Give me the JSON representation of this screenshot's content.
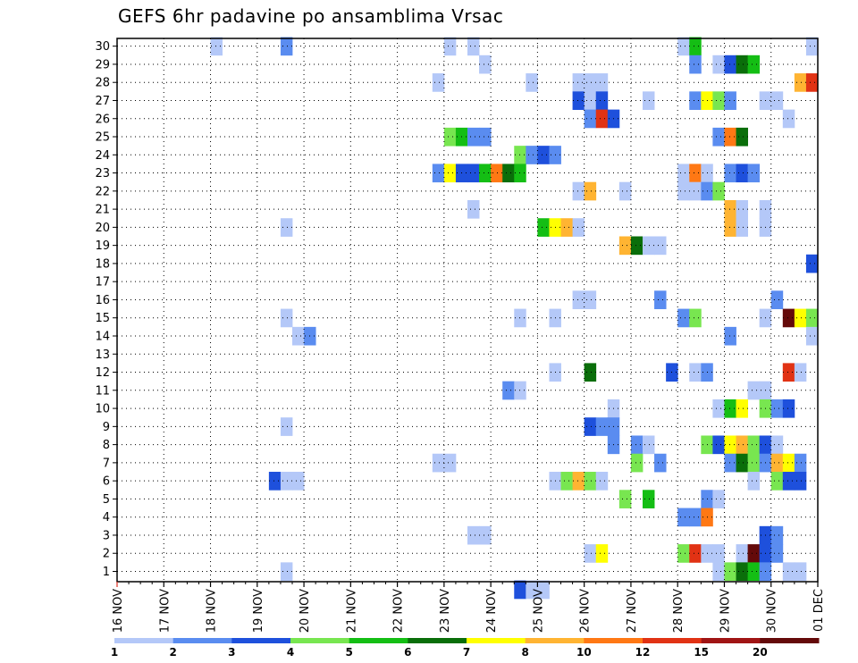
{
  "title": "GEFS 6hr padavine po ansamblima Vrsac",
  "chart_data": {
    "type": "heatmap",
    "title": "GEFS 6hr padavine po ansamblima Vrsac",
    "xlabel": "",
    "ylabel": "",
    "y_ticks": [
      "1",
      "2",
      "3",
      "4",
      "5",
      "6",
      "7",
      "8",
      "9",
      "10",
      "11",
      "12",
      "13",
      "14",
      "15",
      "16",
      "17",
      "18",
      "19",
      "20",
      "21",
      "22",
      "23",
      "24",
      "25",
      "26",
      "27",
      "28",
      "29",
      "30"
    ],
    "x_ticks": [
      "16 NOV",
      "17 NOV",
      "18 NOV",
      "19 NOV",
      "20 NOV",
      "21 NOV",
      "22 NOV",
      "23 NOV",
      "24 NOV",
      "25 NOV",
      "26 NOV",
      "27 NOV",
      "28 NOV",
      "29 NOV",
      "30 NOV",
      "01 DEC"
    ],
    "x_range": [
      "2023-11-16 00:00",
      "2023-12-01 00:00"
    ],
    "time_step_hours": 6,
    "grid": true,
    "legend": {
      "placement": "bottom",
      "labels": [
        "1",
        "2",
        "3",
        "4",
        "5",
        "6",
        "7",
        "8",
        "10",
        "12",
        "15",
        "20"
      ],
      "colors": [
        "#b4c8f8",
        "#5a8cf0",
        "#1e50dc",
        "#78e650",
        "#14be14",
        "#0a6e0a",
        "#ffff00",
        "#ffb432",
        "#ff7814",
        "#e13214",
        "#a01414",
        "#640a0a"
      ]
    },
    "level_colors": {
      "1": "#b4c8f8",
      "2": "#5a8cf0",
      "3": "#1e50dc",
      "4": "#78e650",
      "5": "#14be14",
      "6": "#0a6e0a",
      "7": "#ffff00",
      "8": "#ffb432",
      "9": "#ff7814",
      "10": "#e13214",
      "11": "#a01414",
      "12": "#640a0a"
    },
    "cells": [
      [
        "2023-11-18 00:00",
        30,
        1
      ],
      [
        "2023-11-19 12:00",
        30,
        2
      ],
      [
        "2023-11-23 00:00",
        30,
        1
      ],
      [
        "2023-11-23 12:00",
        30,
        1
      ],
      [
        "2023-11-28 00:00",
        30,
        1
      ],
      [
        "2023-11-28 06:00",
        30,
        5
      ],
      [
        "2023-11-30 18:00",
        30,
        1
      ],
      [
        "2023-11-23 18:00",
        29,
        1
      ],
      [
        "2023-11-28 06:00",
        29,
        2
      ],
      [
        "2023-11-28 18:00",
        29,
        1
      ],
      [
        "2023-11-29 00:00",
        29,
        3
      ],
      [
        "2023-11-29 06:00",
        29,
        6
      ],
      [
        "2023-11-29 12:00",
        29,
        5
      ],
      [
        "2023-11-22 18:00",
        28,
        1
      ],
      [
        "2023-11-24 18:00",
        28,
        1
      ],
      [
        "2023-11-25 18:00",
        28,
        1
      ],
      [
        "2023-11-26 00:00",
        28,
        1
      ],
      [
        "2023-11-26 06:00",
        28,
        1
      ],
      [
        "2023-11-30 12:00",
        28,
        8
      ],
      [
        "2023-11-30 18:00",
        28,
        10
      ],
      [
        "2023-12-01 00:00",
        28,
        2
      ],
      [
        "2023-11-25 18:00",
        27,
        3
      ],
      [
        "2023-11-26 00:00",
        27,
        1
      ],
      [
        "2023-11-26 06:00",
        27,
        3
      ],
      [
        "2023-11-27 06:00",
        27,
        1
      ],
      [
        "2023-11-28 06:00",
        27,
        2
      ],
      [
        "2023-11-28 12:00",
        27,
        7
      ],
      [
        "2023-11-28 18:00",
        27,
        4
      ],
      [
        "2023-11-29 00:00",
        27,
        2
      ],
      [
        "2023-11-29 18:00",
        27,
        1
      ],
      [
        "2023-11-30 00:00",
        27,
        1
      ],
      [
        "2023-11-26 00:00",
        26,
        2
      ],
      [
        "2023-11-26 06:00",
        26,
        10
      ],
      [
        "2023-11-26 12:00",
        26,
        3
      ],
      [
        "2023-11-30 06:00",
        26,
        1
      ],
      [
        "2023-12-01 00:00",
        26,
        3
      ],
      [
        "2023-11-23 00:00",
        25,
        4
      ],
      [
        "2023-11-23 06:00",
        25,
        5
      ],
      [
        "2023-11-23 12:00",
        25,
        2
      ],
      [
        "2023-11-23 18:00",
        25,
        2
      ],
      [
        "2023-11-28 18:00",
        25,
        2
      ],
      [
        "2023-11-29 00:00",
        25,
        9
      ],
      [
        "2023-11-29 06:00",
        25,
        6
      ],
      [
        "2023-11-24 12:00",
        24,
        4
      ],
      [
        "2023-11-24 18:00",
        24,
        2
      ],
      [
        "2023-11-25 00:00",
        24,
        3
      ],
      [
        "2023-11-25 06:00",
        24,
        2
      ],
      [
        "2023-11-22 18:00",
        23,
        2
      ],
      [
        "2023-11-23 00:00",
        23,
        7
      ],
      [
        "2023-11-23 06:00",
        23,
        3
      ],
      [
        "2023-11-23 12:00",
        23,
        3
      ],
      [
        "2023-11-23 18:00",
        23,
        5
      ],
      [
        "2023-11-24 00:00",
        23,
        9
      ],
      [
        "2023-11-24 06:00",
        23,
        6
      ],
      [
        "2023-11-24 12:00",
        23,
        5
      ],
      [
        "2023-11-28 00:00",
        23,
        1
      ],
      [
        "2023-11-28 06:00",
        23,
        9
      ],
      [
        "2023-11-28 12:00",
        23,
        1
      ],
      [
        "2023-11-29 00:00",
        23,
        2
      ],
      [
        "2023-11-29 06:00",
        23,
        3
      ],
      [
        "2023-11-29 12:00",
        23,
        2
      ],
      [
        "2023-11-25 18:00",
        22,
        1
      ],
      [
        "2023-11-26 00:00",
        22,
        8
      ],
      [
        "2023-11-26 18:00",
        22,
        1
      ],
      [
        "2023-11-28 00:00",
        22,
        1
      ],
      [
        "2023-11-28 06:00",
        22,
        1
      ],
      [
        "2023-11-28 12:00",
        22,
        2
      ],
      [
        "2023-11-28 18:00",
        22,
        4
      ],
      [
        "2023-11-23 12:00",
        21,
        1
      ],
      [
        "2023-11-19 12:00",
        20,
        1
      ],
      [
        "2023-11-25 00:00",
        20,
        5
      ],
      [
        "2023-11-25 06:00",
        20,
        7
      ],
      [
        "2023-11-25 12:00",
        20,
        8
      ],
      [
        "2023-11-25 18:00",
        20,
        1
      ],
      [
        "2023-11-29 00:00",
        20,
        8
      ],
      [
        "2023-11-29 06:00",
        20,
        1
      ],
      [
        "2023-11-29 18:00",
        20,
        1
      ],
      [
        "2023-11-29 00:00",
        21,
        8
      ],
      [
        "2023-11-29 06:00",
        21,
        1
      ],
      [
        "2023-11-29 18:00",
        21,
        1
      ],
      [
        "2023-11-26 18:00",
        19,
        8
      ],
      [
        "2023-11-27 00:00",
        19,
        6
      ],
      [
        "2023-11-27 06:00",
        19,
        1
      ],
      [
        "2023-11-27 12:00",
        19,
        1
      ],
      [
        "2023-11-30 18:00",
        18,
        3
      ],
      [
        "2023-11-25 18:00",
        16,
        1
      ],
      [
        "2023-11-26 00:00",
        16,
        1
      ],
      [
        "2023-11-27 12:00",
        16,
        2
      ],
      [
        "2023-11-30 00:00",
        16,
        2
      ],
      [
        "2023-11-19 12:00",
        15,
        1
      ],
      [
        "2023-11-24 12:00",
        15,
        1
      ],
      [
        "2023-11-25 06:00",
        15,
        1
      ],
      [
        "2023-11-28 00:00",
        15,
        2
      ],
      [
        "2023-11-28 06:00",
        15,
        4
      ],
      [
        "2023-11-29 18:00",
        15,
        1
      ],
      [
        "2023-11-30 06:00",
        15,
        12
      ],
      [
        "2023-11-30 12:00",
        15,
        7
      ],
      [
        "2023-11-30 18:00",
        15,
        4
      ],
      [
        "2023-11-19 18:00",
        14,
        1
      ],
      [
        "2023-11-20 00:00",
        14,
        2
      ],
      [
        "2023-11-29 00:00",
        14,
        2
      ],
      [
        "2023-11-30 18:00",
        14,
        1
      ],
      [
        "2023-11-25 06:00",
        12,
        1
      ],
      [
        "2023-11-26 00:00",
        12,
        6
      ],
      [
        "2023-11-27 18:00",
        12,
        3
      ],
      [
        "2023-11-28 06:00",
        12,
        1
      ],
      [
        "2023-11-28 12:00",
        12,
        2
      ],
      [
        "2023-11-30 06:00",
        12,
        10
      ],
      [
        "2023-11-30 12:00",
        12,
        1
      ],
      [
        "2023-11-24 06:00",
        11,
        2
      ],
      [
        "2023-11-24 12:00",
        11,
        1
      ],
      [
        "2023-11-29 12:00",
        11,
        1
      ],
      [
        "2023-11-29 18:00",
        11,
        1
      ],
      [
        "2023-11-26 12:00",
        10,
        1
      ],
      [
        "2023-11-28 18:00",
        10,
        1
      ],
      [
        "2023-11-29 00:00",
        10,
        5
      ],
      [
        "2023-11-29 06:00",
        10,
        7
      ],
      [
        "2023-11-29 18:00",
        10,
        4
      ],
      [
        "2023-11-30 00:00",
        10,
        2
      ],
      [
        "2023-11-30 06:00",
        10,
        3
      ],
      [
        "2023-11-19 12:00",
        9,
        1
      ],
      [
        "2023-11-26 00:00",
        9,
        3
      ],
      [
        "2023-11-26 06:00",
        9,
        2
      ],
      [
        "2023-11-26 12:00",
        9,
        2
      ],
      [
        "2023-11-26 12:00",
        8,
        2
      ],
      [
        "2023-11-27 00:00",
        8,
        2
      ],
      [
        "2023-11-27 06:00",
        8,
        1
      ],
      [
        "2023-11-28 12:00",
        8,
        4
      ],
      [
        "2023-11-28 18:00",
        8,
        3
      ],
      [
        "2023-11-29 00:00",
        8,
        7
      ],
      [
        "2023-11-29 06:00",
        8,
        8
      ],
      [
        "2023-11-29 12:00",
        8,
        4
      ],
      [
        "2023-11-29 18:00",
        8,
        3
      ],
      [
        "2023-11-30 00:00",
        8,
        1
      ],
      [
        "2023-12-01 00:00",
        8,
        8
      ],
      [
        "2023-11-22 18:00",
        7,
        1
      ],
      [
        "2023-11-23 00:00",
        7,
        1
      ],
      [
        "2023-11-27 00:00",
        7,
        4
      ],
      [
        "2023-11-27 12:00",
        7,
        2
      ],
      [
        "2023-11-29 00:00",
        7,
        2
      ],
      [
        "2023-11-29 06:00",
        7,
        6
      ],
      [
        "2023-11-29 12:00",
        7,
        4
      ],
      [
        "2023-11-29 18:00",
        7,
        2
      ],
      [
        "2023-11-30 00:00",
        7,
        8
      ],
      [
        "2023-11-30 06:00",
        7,
        7
      ],
      [
        "2023-11-30 12:00",
        7,
        2
      ],
      [
        "2023-11-19 06:00",
        6,
        3
      ],
      [
        "2023-11-19 12:00",
        6,
        1
      ],
      [
        "2023-11-19 18:00",
        6,
        1
      ],
      [
        "2023-11-25 06:00",
        6,
        1
      ],
      [
        "2023-11-25 12:00",
        6,
        4
      ],
      [
        "2023-11-25 18:00",
        6,
        8
      ],
      [
        "2023-11-26 00:00",
        6,
        4
      ],
      [
        "2023-11-26 06:00",
        6,
        1
      ],
      [
        "2023-11-29 12:00",
        6,
        1
      ],
      [
        "2023-11-30 00:00",
        6,
        4
      ],
      [
        "2023-11-30 06:00",
        6,
        3
      ],
      [
        "2023-11-30 12:00",
        6,
        3
      ],
      [
        "2023-12-01 00:00",
        6,
        1
      ],
      [
        "2023-11-26 18:00",
        5,
        4
      ],
      [
        "2023-11-27 06:00",
        5,
        5
      ],
      [
        "2023-11-28 12:00",
        5,
        2
      ],
      [
        "2023-11-28 18:00",
        5,
        1
      ],
      [
        "2023-11-28 00:00",
        4,
        2
      ],
      [
        "2023-11-28 06:00",
        4,
        2
      ],
      [
        "2023-11-28 12:00",
        4,
        9
      ],
      [
        "2023-11-23 12:00",
        3,
        1
      ],
      [
        "2023-11-23 18:00",
        3,
        1
      ],
      [
        "2023-11-29 18:00",
        3,
        3
      ],
      [
        "2023-11-30 00:00",
        3,
        2
      ],
      [
        "2023-11-26 00:00",
        2,
        1
      ],
      [
        "2023-11-26 06:00",
        2,
        7
      ],
      [
        "2023-11-28 00:00",
        2,
        4
      ],
      [
        "2023-11-28 06:00",
        2,
        10
      ],
      [
        "2023-11-28 12:00",
        2,
        1
      ],
      [
        "2023-11-28 18:00",
        2,
        1
      ],
      [
        "2023-11-29 06:00",
        2,
        1
      ],
      [
        "2023-11-29 12:00",
        2,
        12
      ],
      [
        "2023-11-29 18:00",
        2,
        3
      ],
      [
        "2023-11-30 00:00",
        2,
        2
      ],
      [
        "2023-12-01 00:00",
        2,
        4
      ],
      [
        "2023-11-19 12:00",
        1,
        1
      ],
      [
        "2023-11-28 18:00",
        1,
        1
      ],
      [
        "2023-11-29 00:00",
        1,
        4
      ],
      [
        "2023-11-29 06:00",
        1,
        6
      ],
      [
        "2023-11-29 12:00",
        1,
        5
      ],
      [
        "2023-11-29 18:00",
        1,
        2
      ],
      [
        "2023-11-30 06:00",
        1,
        1
      ],
      [
        "2023-11-30 12:00",
        1,
        1
      ],
      [
        "2023-11-24 12:00",
        0,
        3
      ],
      [
        "2023-11-24 18:00",
        0,
        1
      ],
      [
        "2023-11-25 00:00",
        0,
        1
      ]
    ]
  }
}
